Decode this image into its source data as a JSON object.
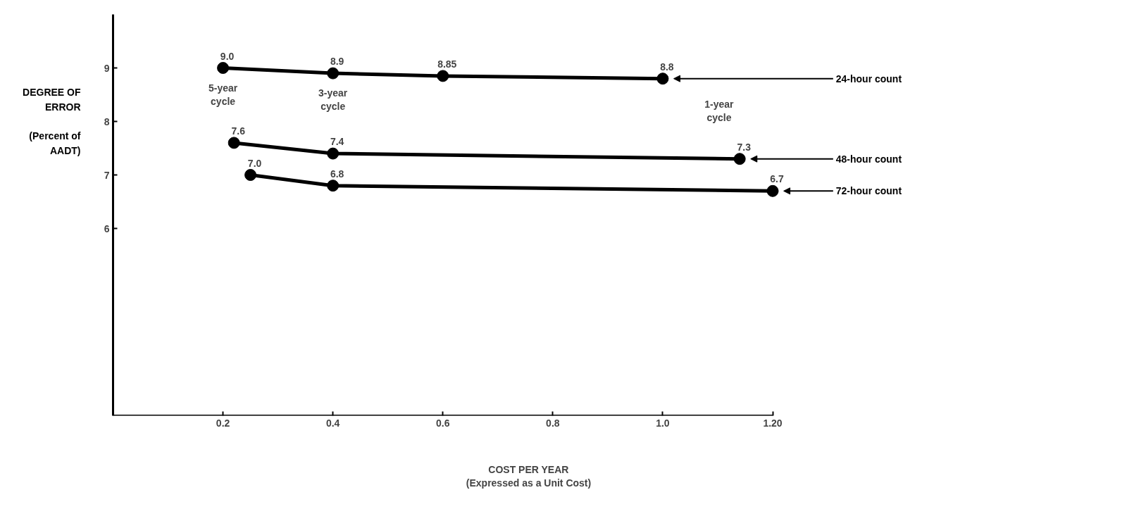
{
  "chart_data": {
    "type": "line",
    "xlabel": "COST PER YEAR\n(Expressed as a Unit Cost)",
    "ylabel": "DEGREE OF\nERROR\n\n(Percent of\nAADT)",
    "xlim": [
      0,
      1.2
    ],
    "ylim": [
      2.5,
      10
    ],
    "xticks": [
      0.2,
      0.4,
      0.6,
      0.8,
      {
        "value": 1.0,
        "label": "1.0"
      },
      {
        "value": 1.2,
        "label": "1.20"
      }
    ],
    "yticks": [
      6,
      7,
      8,
      9
    ],
    "grid": false,
    "legend": false,
    "marker": "circle",
    "line_style": "solid",
    "series": [
      {
        "name": "24-hour count",
        "color": "#000000",
        "x": [
          0.2,
          0.4,
          0.6,
          1.0
        ],
        "values": [
          9.0,
          8.9,
          8.85,
          8.8
        ],
        "value_labels": [
          "9.0",
          "8.9",
          "8.85",
          "8.8"
        ]
      },
      {
        "name": "48-hour count",
        "color": "#000000",
        "x": [
          0.22,
          0.4,
          1.14
        ],
        "values": [
          7.6,
          7.4,
          7.3
        ],
        "value_labels": [
          "7.6",
          "7.4",
          "7.3"
        ]
      },
      {
        "name": "72-hour count",
        "color": "#000000",
        "x": [
          0.25,
          0.4,
          1.2
        ],
        "values": [
          7.0,
          6.8,
          6.7
        ],
        "value_labels": [
          "7.0",
          "6.8",
          "6.7"
        ]
      }
    ],
    "annotations": [
      {
        "text": "5-year cycle",
        "x": 0.2,
        "y": 9.0
      },
      {
        "text": "3-year cycle",
        "x": 0.4,
        "y": 8.9
      },
      "1-year cycle"
    ]
  }
}
